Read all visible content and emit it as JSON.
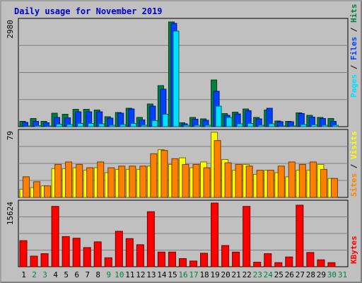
{
  "title": "Daily usage for November 2019",
  "chart_data": [
    {
      "type": "bar",
      "panel": "pages-files-hits",
      "title": "Daily usage for November 2019",
      "categories": [
        "1",
        "2",
        "3",
        "4",
        "5",
        "6",
        "7",
        "8",
        "9",
        "10",
        "11",
        "12",
        "13",
        "14",
        "15",
        "16",
        "17",
        "18",
        "19",
        "20",
        "21",
        "22",
        "23",
        "24",
        "25",
        "26",
        "27",
        "28",
        "29",
        "30",
        "31"
      ],
      "weekend_days": [
        "2",
        "3",
        "9",
        "10",
        "16",
        "17",
        "23",
        "24",
        "30",
        "31"
      ],
      "ymax_label": "2980",
      "ylim": [
        0,
        2980
      ],
      "grid": true,
      "series": [
        {
          "name": "Hits",
          "color": "#008040",
          "values": [
            150,
            230,
            150,
            380,
            350,
            490,
            490,
            470,
            280,
            400,
            520,
            260,
            640,
            1160,
            2960,
            110,
            260,
            220,
            1320,
            370,
            410,
            500,
            260,
            470,
            160,
            150,
            390,
            320,
            260,
            230,
            0
          ]
        },
        {
          "name": "Files",
          "color": "#0040ff",
          "values": [
            120,
            150,
            110,
            260,
            250,
            420,
            420,
            420,
            240,
            380,
            500,
            190,
            580,
            1060,
            2920,
            80,
            210,
            180,
            1000,
            320,
            360,
            450,
            220,
            520,
            140,
            140,
            370,
            270,
            230,
            150,
            0
          ]
        },
        {
          "name": "Pages",
          "color": "#00e0ff",
          "values": [
            20,
            30,
            20,
            70,
            60,
            90,
            90,
            80,
            40,
            60,
            90,
            40,
            170,
            350,
            2700,
            40,
            40,
            40,
            580,
            260,
            80,
            90,
            40,
            80,
            20,
            20,
            60,
            50,
            40,
            40,
            0
          ]
        }
      ],
      "legend_labels": {
        "pages": "Pages",
        "files": "Files",
        "hits": "Hits",
        "separator": " / "
      }
    },
    {
      "type": "bar",
      "panel": "visits-sites",
      "categories": [
        "1",
        "2",
        "3",
        "4",
        "5",
        "6",
        "7",
        "8",
        "9",
        "10",
        "11",
        "12",
        "13",
        "14",
        "15",
        "16",
        "17",
        "18",
        "19",
        "20",
        "21",
        "22",
        "23",
        "24",
        "25",
        "26",
        "27",
        "28",
        "29",
        "30",
        "31"
      ],
      "ymax_label": "79",
      "ylim": [
        0,
        79
      ],
      "grid": true,
      "series": [
        {
          "name": "Visits",
          "color": "#ffff00",
          "values": [
            10,
            12,
            14,
            35,
            35,
            36,
            33,
            36,
            30,
            34,
            34,
            34,
            38,
            58,
            40,
            48,
            36,
            43,
            79,
            46,
            33,
            40,
            28,
            33,
            30,
            25,
            33,
            33,
            40,
            23,
            0
          ]
        },
        {
          "name": "Sites",
          "color": "#ff8000",
          "values": [
            25,
            19,
            14,
            40,
            43,
            40,
            36,
            43,
            36,
            38,
            38,
            38,
            53,
            57,
            47,
            40,
            40,
            36,
            69,
            42,
            40,
            38,
            33,
            33,
            38,
            43,
            40,
            43,
            34,
            23,
            0
          ]
        }
      ],
      "legend_labels": {
        "sites": "Sites",
        "visits": "Visits",
        "separator": " / "
      }
    },
    {
      "type": "bar",
      "panel": "kbytes",
      "categories": [
        "1",
        "2",
        "3",
        "4",
        "5",
        "6",
        "7",
        "8",
        "9",
        "10",
        "11",
        "12",
        "13",
        "14",
        "15",
        "16",
        "17",
        "18",
        "19",
        "20",
        "21",
        "22",
        "23",
        "24",
        "25",
        "26",
        "27",
        "28",
        "29",
        "30",
        "31"
      ],
      "ymax_label": "15624",
      "ylim": [
        0,
        15624
      ],
      "grid": true,
      "series": [
        {
          "name": "KBytes",
          "color": "#ff0000",
          "values": [
            6400,
            2600,
            3200,
            14800,
            7400,
            7000,
            4700,
            6100,
            2200,
            8700,
            6900,
            5400,
            13500,
            3600,
            3600,
            2000,
            1400,
            3300,
            15624,
            5200,
            3600,
            14800,
            1100,
            3200,
            1000,
            2400,
            15100,
            3500,
            1700,
            1000,
            0
          ]
        }
      ],
      "legend_labels": {
        "kbytes": "KBytes"
      }
    }
  ],
  "colors": {
    "title": "#0000cc",
    "weekday": "#000000",
    "weekend": "#008040",
    "background": "#c0c0c0",
    "panel_bg": "#c0c0c0",
    "grid": "#808080"
  }
}
